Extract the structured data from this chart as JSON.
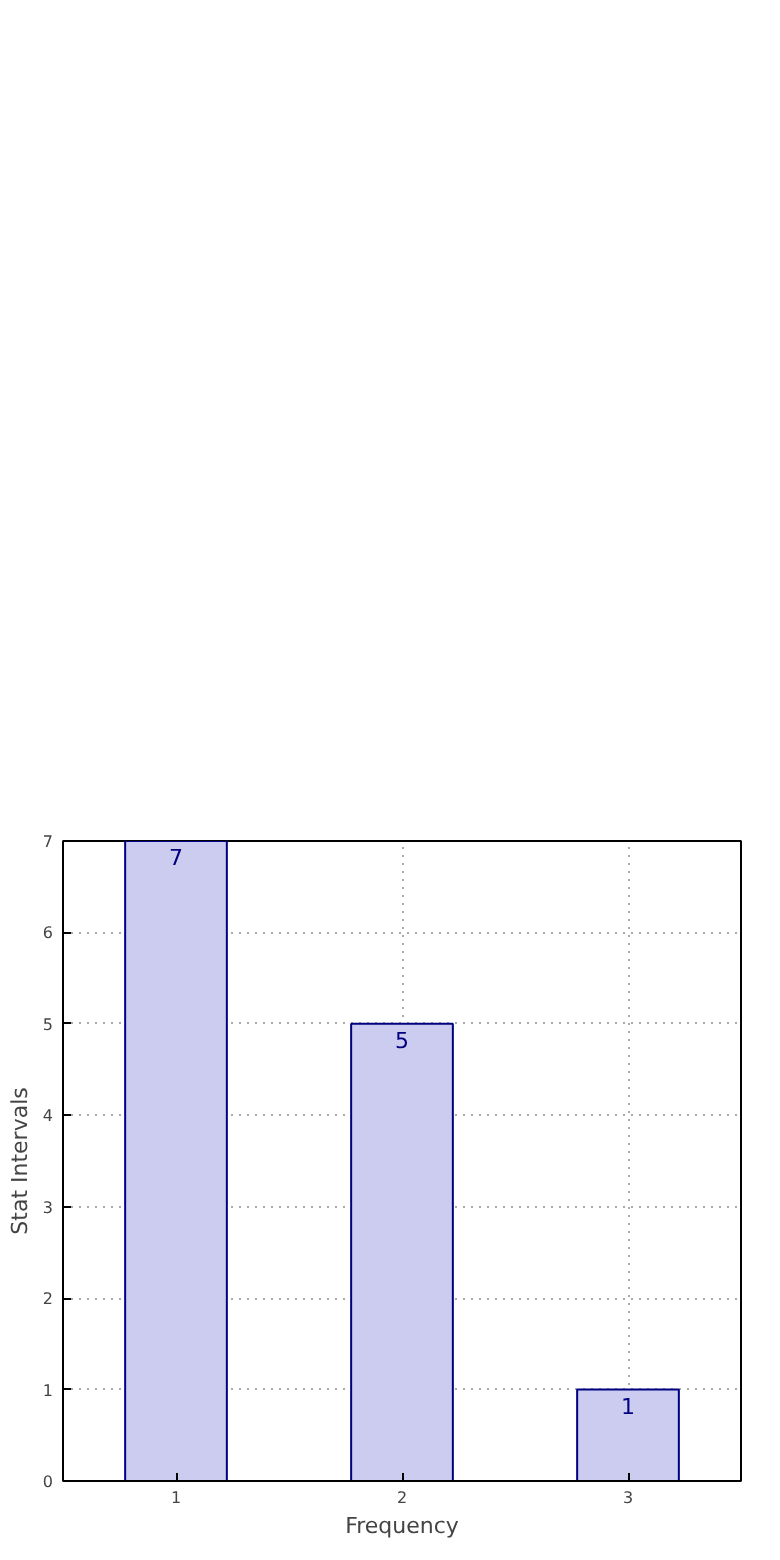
{
  "chart_data": {
    "type": "bar",
    "xlabel": "Frequency",
    "ylabel": "Stat Intervals",
    "x": [
      1,
      2,
      3
    ],
    "values": [
      7,
      5,
      1
    ],
    "color": "#ccccf0",
    "xlim": [
      0.5,
      3.5
    ],
    "xticks": [
      1,
      2,
      3
    ],
    "ylim": [
      0,
      7
    ],
    "yticks": [
      0,
      1,
      2,
      3,
      4,
      5,
      6,
      7
    ],
    "grid": true,
    "data_labels": true
  }
}
